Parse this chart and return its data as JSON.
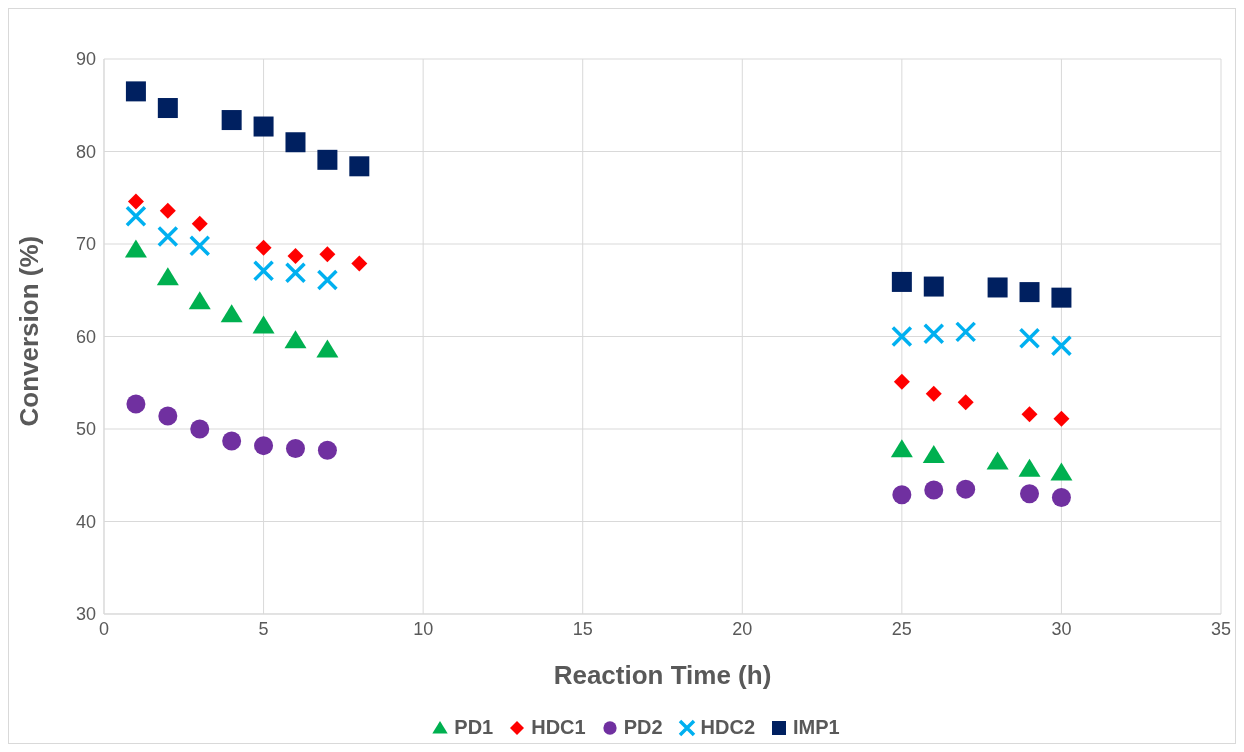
{
  "chart_data": {
    "type": "scatter",
    "xlabel": "Reaction Time (h)",
    "ylabel": "Conversion (%)",
    "xlim": [
      0,
      35
    ],
    "xticks": [
      0,
      5,
      10,
      15,
      20,
      25,
      30,
      35
    ],
    "ylim": [
      30,
      90
    ],
    "yticks": [
      30,
      40,
      50,
      60,
      70,
      80,
      90
    ],
    "grid": true,
    "legend": "bottom",
    "series": [
      {
        "name": "PD1",
        "color": "#00b050",
        "marker": "triangle",
        "x": [
          1,
          2,
          3,
          4,
          5,
          6,
          7,
          25,
          26,
          28,
          29,
          30
        ],
        "values": [
          69.4,
          66.4,
          63.8,
          62.4,
          61.2,
          59.6,
          58.6,
          47.8,
          47.2,
          46.5,
          45.7,
          45.3
        ]
      },
      {
        "name": "HDC1",
        "color": "#ff0000",
        "marker": "diamond",
        "x": [
          1,
          2,
          3,
          5,
          6,
          7,
          8,
          25,
          26,
          27,
          29,
          30
        ],
        "values": [
          74.6,
          73.6,
          72.2,
          69.6,
          68.7,
          68.9,
          67.9,
          55.1,
          53.8,
          52.9,
          51.6,
          51.1
        ]
      },
      {
        "name": "PD2",
        "color": "#7030a0",
        "marker": "circle",
        "x": [
          1,
          2,
          3,
          4,
          5,
          6,
          7,
          25,
          26,
          27,
          29,
          30
        ],
        "values": [
          52.7,
          51.4,
          50.0,
          48.7,
          48.2,
          47.9,
          47.7,
          42.9,
          43.4,
          43.5,
          43.0,
          42.6
        ]
      },
      {
        "name": "HDC2",
        "color": "#00b0f0",
        "marker": "cross",
        "x": [
          1,
          2,
          3,
          5,
          6,
          7,
          25,
          26,
          27,
          29,
          30
        ],
        "values": [
          73.0,
          70.8,
          69.8,
          67.1,
          66.9,
          66.1,
          60.0,
          60.3,
          60.5,
          59.8,
          59.0
        ]
      },
      {
        "name": "IMP1",
        "color": "#002060",
        "marker": "square",
        "x": [
          1,
          2,
          4,
          5,
          6,
          7,
          8,
          25,
          26,
          28,
          29,
          30
        ],
        "values": [
          86.5,
          84.7,
          83.4,
          82.7,
          81.0,
          79.1,
          78.4,
          65.9,
          65.4,
          65.3,
          64.8,
          64.2
        ]
      }
    ]
  }
}
